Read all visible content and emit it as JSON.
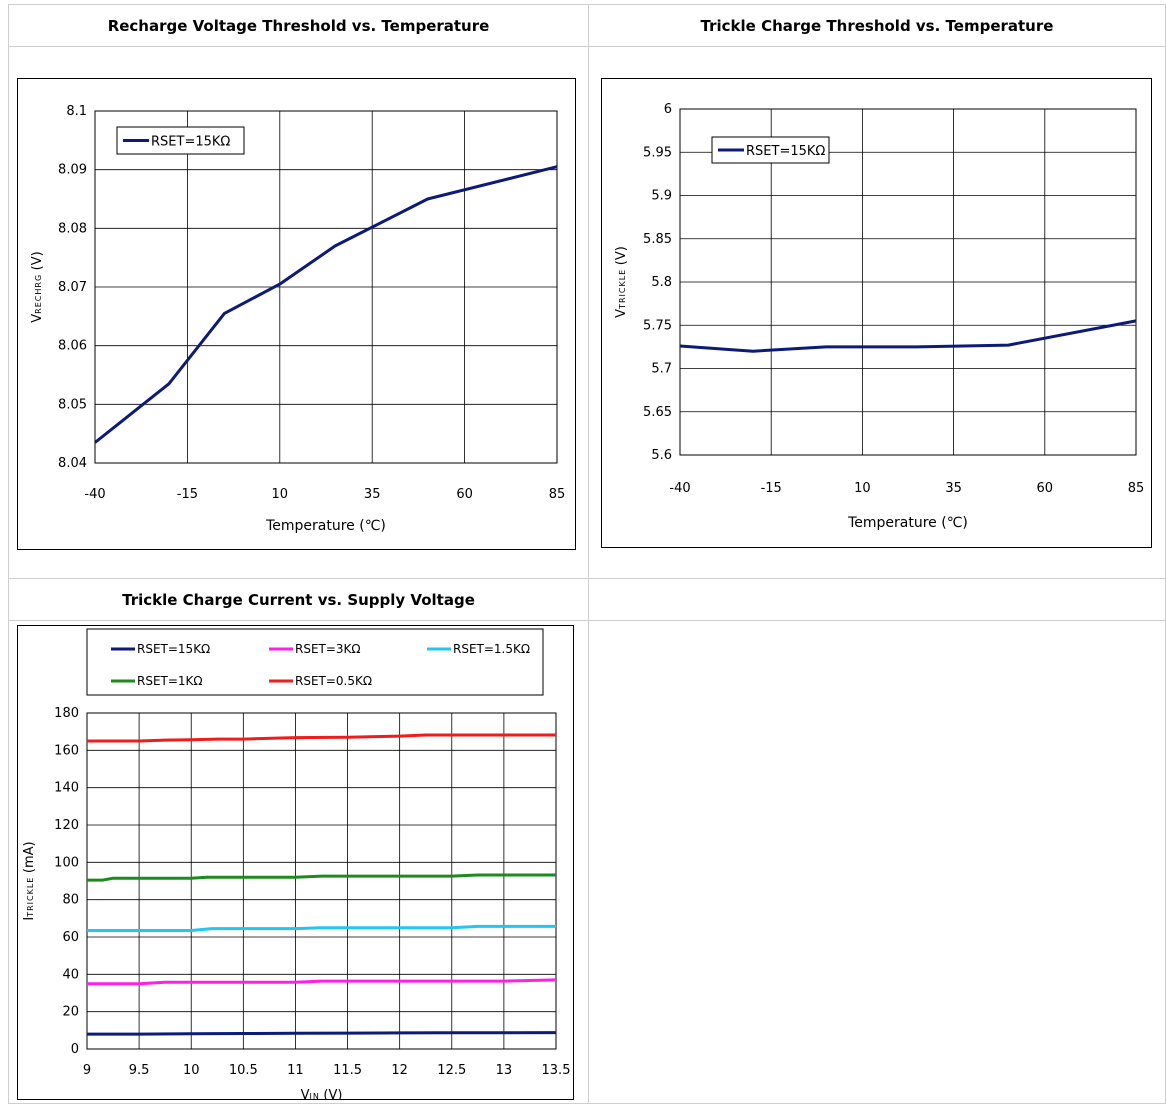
{
  "cells": [
    {
      "title": "Recharge Voltage Threshold vs. Temperature"
    },
    {
      "title": "Trickle Charge Threshold vs. Temperature"
    },
    {
      "title": "Trickle Charge Current vs. Supply Voltage"
    }
  ],
  "chart_data": [
    {
      "type": "line",
      "title": "Recharge Voltage Threshold vs. Temperature",
      "xlabel": "Temperature (℃)",
      "ylabel_main": "V",
      "ylabel_sub": "RECHRG",
      "ylabel_unit": "(V)",
      "xlim": [
        -40,
        85
      ],
      "ylim": [
        8.04,
        8.1
      ],
      "xticks": [
        "-40",
        "-15",
        "10",
        "35",
        "60",
        "85"
      ],
      "yticks": [
        "8.04",
        "8.05",
        "8.06",
        "8.07",
        "8.08",
        "8.09",
        "8.1"
      ],
      "grid": true,
      "legend": "top-left",
      "series": [
        {
          "name": "RSET=15KΩ",
          "color": "#0d1a7a",
          "x": [
            -40,
            -20,
            -5,
            10,
            25,
            50,
            85
          ],
          "y": [
            8.0435,
            8.0535,
            8.0655,
            8.0705,
            8.077,
            8.085,
            8.0905
          ]
        }
      ]
    },
    {
      "type": "line",
      "title": "Trickle Charge Threshold vs. Temperature",
      "xlabel": "Temperature (℃)",
      "ylabel_main": "V",
      "ylabel_sub": "TRICKLE",
      "ylabel_unit": "(V)",
      "xlim": [
        -40,
        85
      ],
      "ylim": [
        5.6,
        6.0
      ],
      "xticks": [
        "-40",
        "-15",
        "10",
        "35",
        "60",
        "85"
      ],
      "yticks": [
        "5.6",
        "5.65",
        "5.7",
        "5.75",
        "5.8",
        "5.85",
        "5.9",
        "5.95",
        "6"
      ],
      "grid": true,
      "legend": "top-left",
      "series": [
        {
          "name": "RSET=15KΩ",
          "color": "#0d1a7a",
          "x": [
            -40,
            -20,
            0,
            25,
            50,
            85
          ],
          "y": [
            5.726,
            5.72,
            5.725,
            5.725,
            5.727,
            5.755
          ]
        }
      ]
    },
    {
      "type": "line",
      "title": "Trickle Charge Current vs. Supply Voltage",
      "xlabel_main": "V",
      "xlabel_sub": "IN",
      "xlabel_unit": "(V)",
      "ylabel_main": "I",
      "ylabel_sub": "TRICKLE",
      "ylabel_unit": "(mA)",
      "xlim": [
        9,
        13.5
      ],
      "ylim": [
        0,
        180
      ],
      "xticks": [
        "9",
        "9.5",
        "10",
        "10.5",
        "11",
        "11.5",
        "12",
        "12.5",
        "13",
        "13.5"
      ],
      "yticks": [
        "0",
        "20",
        "40",
        "60",
        "80",
        "100",
        "120",
        "140",
        "160",
        "180"
      ],
      "grid": true,
      "legend": "top",
      "series": [
        {
          "name": "RSET=15KΩ",
          "color": "#0d1a7a",
          "x": [
            9,
            9.5,
            10,
            10.5,
            11,
            11.5,
            12,
            12.5,
            13,
            13.5
          ],
          "y": [
            8,
            8,
            8.2,
            8.3,
            8.4,
            8.5,
            8.6,
            8.7,
            8.7,
            8.8
          ]
        },
        {
          "name": "RSET=3KΩ",
          "color": "#ff1fe6",
          "x": [
            9,
            9.5,
            9.75,
            10,
            10.5,
            11,
            11.25,
            11.5,
            12,
            12.5,
            13,
            13.5
          ],
          "y": [
            35,
            35,
            35.8,
            35.8,
            35.8,
            35.8,
            36.4,
            36.4,
            36.4,
            36.4,
            36.4,
            37
          ]
        },
        {
          "name": "RSET=1.5KΩ",
          "color": "#22c6f0",
          "x": [
            9,
            9.5,
            10,
            10.2,
            10.5,
            11,
            11.25,
            11.5,
            12,
            12.5,
            12.75,
            13,
            13.5
          ],
          "y": [
            63.5,
            63.5,
            63.5,
            64.5,
            64.5,
            64.5,
            65,
            65,
            65,
            65,
            65.7,
            65.7,
            65.7
          ]
        },
        {
          "name": "RSET=1KΩ",
          "color": "#1c8a1c",
          "x": [
            9,
            9.15,
            9.25,
            9.5,
            10,
            10.15,
            10.3,
            10.5,
            11,
            11.25,
            11.5,
            12,
            12.5,
            12.75,
            13,
            13.5
          ],
          "y": [
            90.5,
            90.5,
            91.5,
            91.5,
            91.5,
            92,
            92,
            92,
            92,
            92.6,
            92.6,
            92.6,
            92.6,
            93.2,
            93.2,
            93.2
          ]
        },
        {
          "name": "RSET=0.5KΩ",
          "color": "#ee1c1c",
          "x": [
            9,
            9.5,
            9.75,
            10,
            10.25,
            10.5,
            11,
            11.5,
            12,
            12.25,
            12.5,
            13,
            13.5
          ],
          "y": [
            165,
            165,
            165.5,
            165.7,
            166,
            166,
            166.8,
            167,
            167.6,
            168.2,
            168.2,
            168.2,
            168.2
          ]
        }
      ]
    }
  ]
}
